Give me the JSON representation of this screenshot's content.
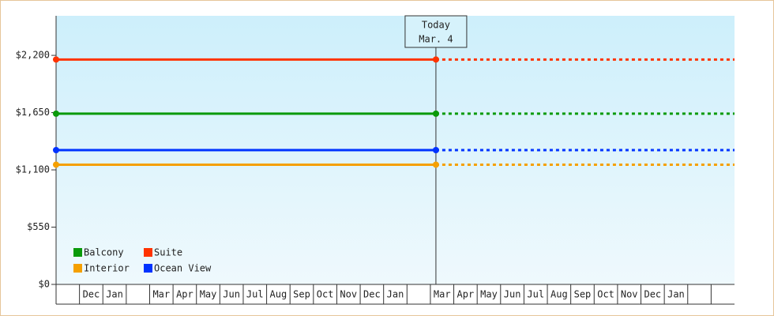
{
  "chart_data": {
    "type": "line",
    "categories": [
      null,
      "Dec",
      "Jan",
      null,
      "Mar",
      "Apr",
      "May",
      "Jun",
      "Jul",
      "Aug",
      "Sep",
      "Oct",
      "Nov",
      "Dec",
      "Jan",
      null,
      "Mar",
      "Apr",
      "May",
      "Jun",
      "Jul",
      "Aug",
      "Sep",
      "Oct",
      "Nov",
      "Dec",
      "Jan",
      null,
      null
    ],
    "series": [
      {
        "name": "Balcony",
        "color": "#0a9a0a",
        "value": 1640
      },
      {
        "name": "Suite",
        "color": "#ff3300",
        "value": 2160
      },
      {
        "name": "Interior",
        "color": "#f5a000",
        "value": 1150
      },
      {
        "name": "Ocean View",
        "color": "#0033ff",
        "value": 1290
      }
    ],
    "annotation": {
      "title": "Today",
      "date": "Mar. 4"
    },
    "ylim": [
      0,
      2580
    ],
    "yticks": [
      {
        "value": 0,
        "label": "$0"
      },
      {
        "value": 550,
        "label": "$550"
      },
      {
        "value": 1100,
        "label": "$1,100"
      },
      {
        "value": 1650,
        "label": "$1,650"
      },
      {
        "value": 2200,
        "label": "$2,200"
      }
    ],
    "legend": "lower left"
  }
}
